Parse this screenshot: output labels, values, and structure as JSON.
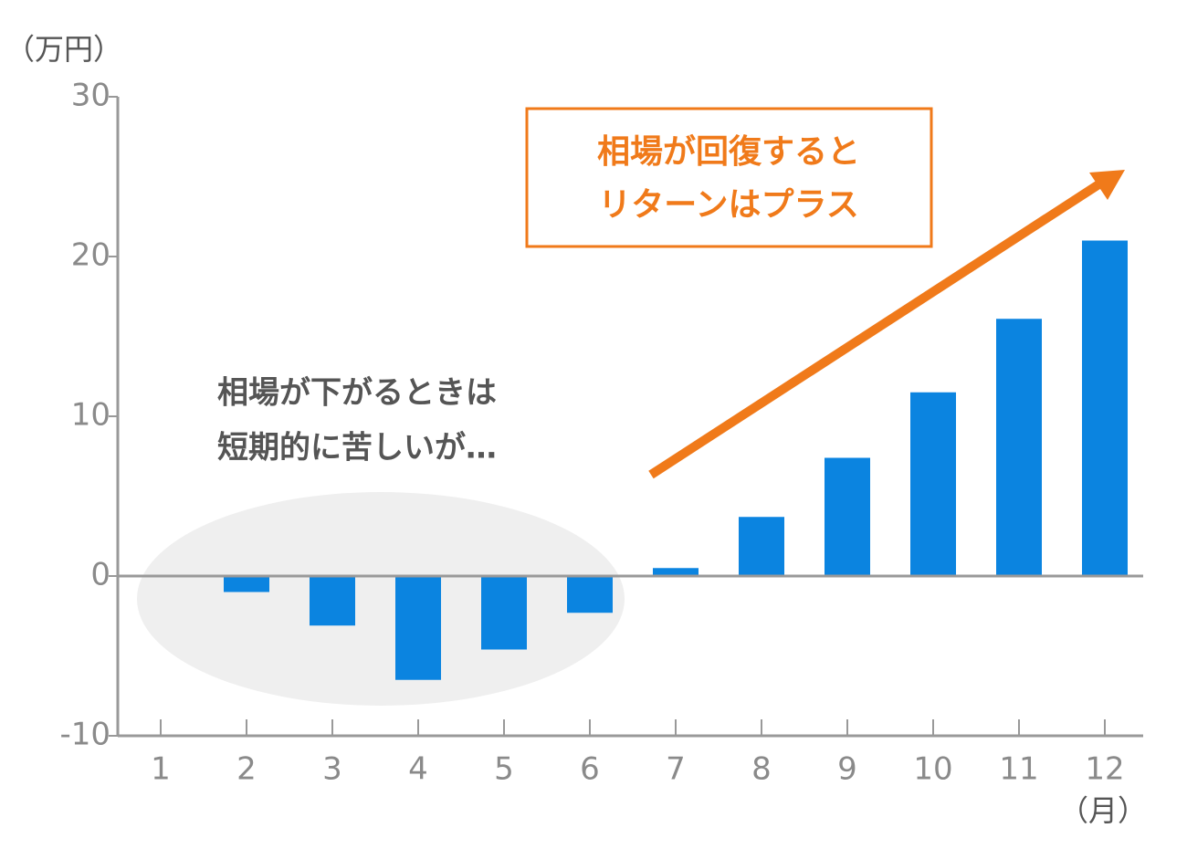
{
  "chart_data": {
    "type": "bar",
    "y_unit": "（万円）",
    "x_unit": "（月）",
    "categories": [
      "1",
      "2",
      "3",
      "4",
      "5",
      "6",
      "7",
      "8",
      "9",
      "10",
      "11",
      "12"
    ],
    "values": [
      0,
      -1.0,
      -3.1,
      -6.5,
      -4.6,
      -2.3,
      0.5,
      3.7,
      7.4,
      11.5,
      16.1,
      21.0
    ],
    "color": "#0b84e0",
    "ylim": [
      -10,
      30
    ],
    "yticks": [
      -10,
      0,
      10,
      20,
      30
    ],
    "annotations": [
      {
        "lines": [
          "相場が下がるときは",
          "短期的に苦しいが…"
        ],
        "color": "#555555"
      },
      {
        "lines": [
          "相場が回復すると",
          "リターンはプラス"
        ],
        "color": "#f07a1a"
      }
    ]
  }
}
